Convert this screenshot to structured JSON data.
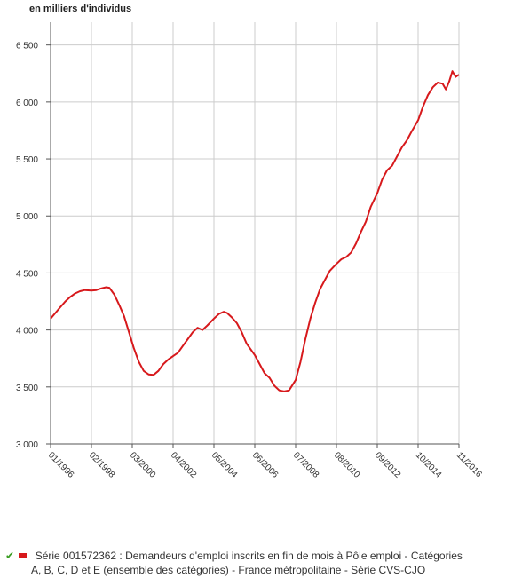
{
  "chart_data": {
    "type": "line",
    "unit_label": "en milliers d'individus",
    "ylim": [
      3000,
      6700
    ],
    "y_ticks": [
      {
        "value": 3000,
        "label": "3 000"
      },
      {
        "value": 3500,
        "label": "3 500"
      },
      {
        "value": 4000,
        "label": "4 000"
      },
      {
        "value": 4500,
        "label": "4 500"
      },
      {
        "value": 5000,
        "label": "5 000"
      },
      {
        "value": 5500,
        "label": "5 500"
      },
      {
        "value": 6000,
        "label": "6 000"
      },
      {
        "value": 6500,
        "label": "6 500"
      }
    ],
    "x_ticks": [
      "01/1996",
      "02/1998",
      "03/2000",
      "04/2002",
      "05/2004",
      "06/2006",
      "07/2008",
      "08/2010",
      "09/2012",
      "10/2014",
      "11/2016"
    ],
    "grid": true,
    "series": [
      {
        "name": "Série 001572362 : Demandeurs d'emploi inscrits en fin de mois à Pôle emploi - Catégories A, B, C, D et E (ensemble des catégories) - France métropolitaine - Série CVS-CJO",
        "color": "#d7191c",
        "points": [
          [
            "1996-01",
            4100
          ],
          [
            "1996-04",
            4150
          ],
          [
            "1996-07",
            4200
          ],
          [
            "1996-10",
            4250
          ],
          [
            "1997-01",
            4290
          ],
          [
            "1997-04",
            4320
          ],
          [
            "1997-07",
            4340
          ],
          [
            "1997-10",
            4350
          ],
          [
            "1998-02",
            4345
          ],
          [
            "1998-05",
            4350
          ],
          [
            "1998-08",
            4365
          ],
          [
            "1998-11",
            4375
          ],
          [
            "1999-01",
            4370
          ],
          [
            "1999-04",
            4310
          ],
          [
            "1999-07",
            4220
          ],
          [
            "1999-10",
            4120
          ],
          [
            "2000-01",
            3980
          ],
          [
            "2000-04",
            3840
          ],
          [
            "2000-07",
            3720
          ],
          [
            "2000-10",
            3640
          ],
          [
            "2001-01",
            3610
          ],
          [
            "2001-04",
            3605
          ],
          [
            "2001-07",
            3640
          ],
          [
            "2001-10",
            3700
          ],
          [
            "2002-01",
            3740
          ],
          [
            "2002-04",
            3770
          ],
          [
            "2002-07",
            3800
          ],
          [
            "2002-10",
            3860
          ],
          [
            "2003-01",
            3920
          ],
          [
            "2003-04",
            3980
          ],
          [
            "2003-07",
            4020
          ],
          [
            "2003-10",
            4000
          ],
          [
            "2004-01",
            4040
          ],
          [
            "2004-05",
            4100
          ],
          [
            "2004-08",
            4140
          ],
          [
            "2004-11",
            4160
          ],
          [
            "2005-01",
            4150
          ],
          [
            "2005-04",
            4110
          ],
          [
            "2005-07",
            4060
          ],
          [
            "2005-10",
            3980
          ],
          [
            "2006-01",
            3880
          ],
          [
            "2006-06",
            3780
          ],
          [
            "2006-09",
            3700
          ],
          [
            "2006-12",
            3620
          ],
          [
            "2007-03",
            3580
          ],
          [
            "2007-06",
            3510
          ],
          [
            "2007-09",
            3470
          ],
          [
            "2007-12",
            3460
          ],
          [
            "2008-03",
            3470
          ],
          [
            "2008-07",
            3560
          ],
          [
            "2008-10",
            3720
          ],
          [
            "2009-01",
            3920
          ],
          [
            "2009-04",
            4100
          ],
          [
            "2009-07",
            4240
          ],
          [
            "2009-10",
            4360
          ],
          [
            "2010-01",
            4440
          ],
          [
            "2010-04",
            4520
          ],
          [
            "2010-08",
            4580
          ],
          [
            "2010-11",
            4620
          ],
          [
            "2011-02",
            4640
          ],
          [
            "2011-05",
            4680
          ],
          [
            "2011-08",
            4760
          ],
          [
            "2011-11",
            4860
          ],
          [
            "2012-02",
            4950
          ],
          [
            "2012-05",
            5080
          ],
          [
            "2012-09",
            5200
          ],
          [
            "2012-12",
            5320
          ],
          [
            "2013-03",
            5400
          ],
          [
            "2013-06",
            5440
          ],
          [
            "2013-09",
            5520
          ],
          [
            "2013-12",
            5600
          ],
          [
            "2014-03",
            5660
          ],
          [
            "2014-06",
            5740
          ],
          [
            "2014-10",
            5840
          ],
          [
            "2015-01",
            5960
          ],
          [
            "2015-04",
            6060
          ],
          [
            "2015-07",
            6130
          ],
          [
            "2015-10",
            6170
          ],
          [
            "2016-01",
            6160
          ],
          [
            "2016-03",
            6110
          ],
          [
            "2016-05",
            6180
          ],
          [
            "2016-07",
            6270
          ],
          [
            "2016-09",
            6220
          ],
          [
            "2016-11",
            6240
          ]
        ]
      }
    ]
  },
  "legend": {
    "check_symbol": "✔",
    "line1": "Série 001572362 : Demandeurs d'emploi inscrits en fin de mois à Pôle emploi - Catégories",
    "line2": "A, B, C, D et E (ensemble des catégories) - France métropolitaine - Série CVS-CJO"
  }
}
